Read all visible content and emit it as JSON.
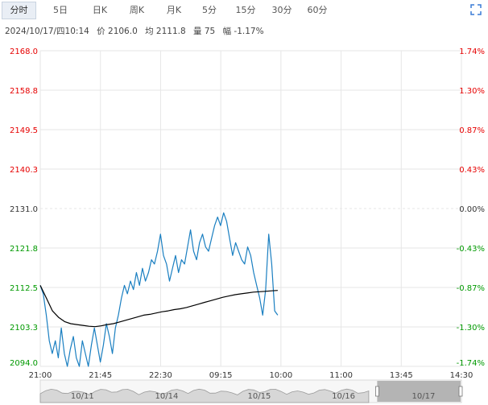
{
  "tabs": [
    {
      "label": "分时",
      "active": true
    },
    {
      "label": "5日",
      "active": false
    },
    {
      "label": "日K",
      "active": false
    },
    {
      "label": "周K",
      "active": false
    },
    {
      "label": "月K",
      "active": false
    },
    {
      "label": "5分",
      "active": false
    },
    {
      "label": "15分",
      "active": false
    },
    {
      "label": "30分",
      "active": false
    },
    {
      "label": "60分",
      "active": false
    }
  ],
  "icons": {
    "expand": "expand-icon"
  },
  "info": {
    "datetime": "2024/10/17/四10:14",
    "price": "价 2106.0",
    "avg": "均 2111.8",
    "volume": "量 75",
    "change": "幅 -1.17%"
  },
  "colors": {
    "price_line": "#1a7fc1",
    "avg_line": "#000000",
    "up": "#e60000",
    "down": "#009900",
    "neutral": "#333333",
    "grid": "#e6e6e6",
    "nav_fill": "#d7d7d7"
  },
  "chart_data": {
    "type": "line",
    "left_axis_ticks": [
      "2168.0",
      "2158.8",
      "2149.5",
      "2140.3",
      "2131.0",
      "2121.8",
      "2112.5",
      "2103.3",
      "2094.0"
    ],
    "right_axis_ticks": [
      "1.74%",
      "1.30%",
      "0.87%",
      "0.43%",
      "0.00%",
      "-0.43%",
      "-0.87%",
      "-1.30%",
      "-1.74%"
    ],
    "x_ticks": [
      "21:00",
      "21:45",
      "22:30",
      "09:15",
      "10:00",
      "11:00",
      "13:45",
      "14:30"
    ],
    "ylim": [
      2094.0,
      2168.0
    ],
    "reference_price": 2131.0,
    "series": [
      {
        "name": "price",
        "values": [
          2113,
          2111,
          2106,
          2100,
          2097,
          2100,
          2096,
          2103,
          2097,
          2094,
          2098,
          2101,
          2096,
          2094,
          2100,
          2097,
          2094,
          2099,
          2103,
          2099,
          2095,
          2099,
          2104,
          2101,
          2097,
          2103,
          2106,
          2110,
          2113,
          2111,
          2114,
          2112,
          2116,
          2113,
          2117,
          2114,
          2116,
          2119,
          2118,
          2121,
          2125,
          2120,
          2118,
          2114,
          2117,
          2120,
          2116,
          2119,
          2118,
          2122,
          2126,
          2121,
          2119,
          2123,
          2125,
          2122,
          2121,
          2124,
          2127,
          2129,
          2127,
          2130,
          2128,
          2124,
          2120,
          2123,
          2121,
          2119,
          2118,
          2122,
          2120,
          2116,
          2113,
          2110,
          2106,
          2112,
          2125,
          2118,
          2107,
          2106
        ]
      },
      {
        "name": "avg",
        "values": [
          2113,
          2110,
          2107,
          2105.5,
          2104.5,
          2104,
          2103.8,
          2103.6,
          2103.4,
          2103.3,
          2103.5,
          2103.8,
          2104,
          2104.4,
          2104.8,
          2105.2,
          2105.6,
          2106,
          2106.2,
          2106.5,
          2106.8,
          2107,
          2107.3,
          2107.5,
          2107.8,
          2108.2,
          2108.6,
          2109,
          2109.4,
          2109.8,
          2110.2,
          2110.5,
          2110.8,
          2111,
          2111.2,
          2111.4,
          2111.5,
          2111.6,
          2111.7,
          2111.8
        ]
      }
    ]
  },
  "navigator": {
    "labels": [
      "10/11",
      "10/14",
      "10/15",
      "10/16",
      "10/17"
    ]
  }
}
